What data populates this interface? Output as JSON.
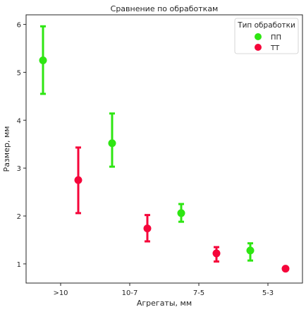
{
  "chart_data": {
    "type": "scatter",
    "title": "Сравнение по обработкам",
    "xlabel": "Агрегаты, мм",
    "ylabel": "Размер, мм",
    "categories": [
      ">10",
      "10-7",
      "7-5",
      "5-3"
    ],
    "y_ticks": [
      1,
      2,
      3,
      4,
      5,
      6
    ],
    "ylim": [
      0.6,
      6.2
    ],
    "grid": false,
    "legend": {
      "title": "Тип обработки",
      "position": "top-right"
    },
    "series": [
      {
        "name": "ПП",
        "color": "#2ee612",
        "values": [
          5.25,
          3.52,
          2.06,
          1.28
        ],
        "err_low": [
          4.55,
          3.03,
          1.88,
          1.07
        ],
        "err_high": [
          5.96,
          4.14,
          2.25,
          1.43
        ]
      },
      {
        "name": "ТТ",
        "color": "#f5053a",
        "values": [
          2.75,
          1.74,
          1.22,
          0.9
        ],
        "err_low": [
          2.06,
          1.47,
          1.05,
          null
        ],
        "err_high": [
          3.43,
          2.02,
          1.35,
          null
        ]
      }
    ]
  }
}
